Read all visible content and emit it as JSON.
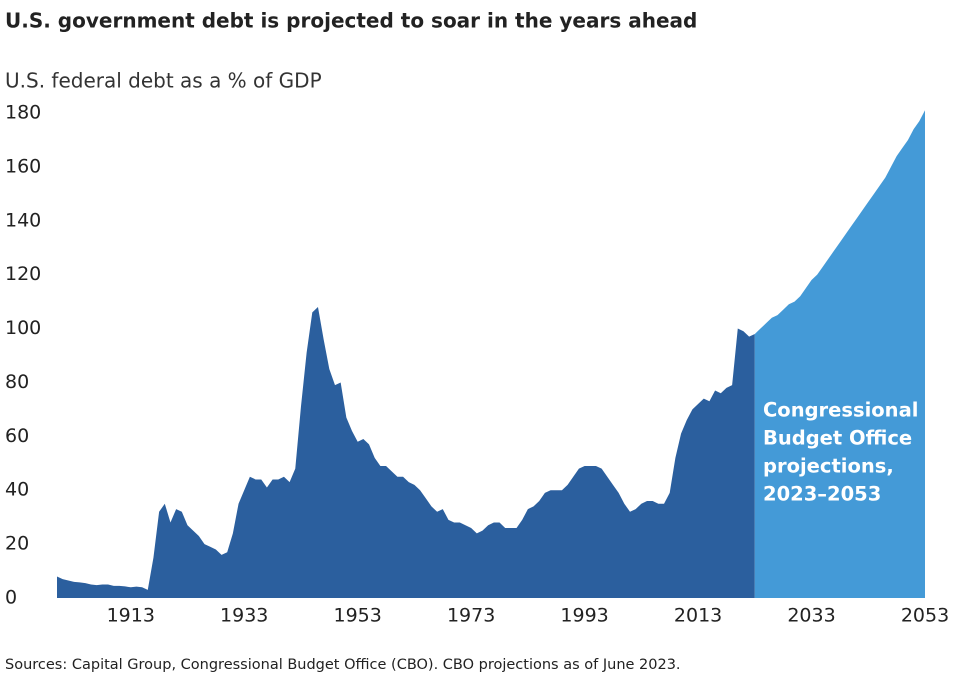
{
  "chart_data": {
    "type": "area",
    "title": "U.S. government debt is projected to soar in the years ahead",
    "subtitle": "U.S. federal debt as a % of GDP",
    "source": "Sources: Capital Group, Congressional Budget Office (CBO). CBO projections as of June 2023.",
    "annotation": [
      "Congressional",
      "Budget Office",
      "projections,",
      "2023–2053"
    ],
    "xlim": [
      1900,
      2053
    ],
    "xticks": [
      1913,
      1933,
      1953,
      1973,
      1993,
      2013,
      2033,
      2053
    ],
    "ylim": [
      0,
      180
    ],
    "yticks": [
      0,
      20,
      40,
      60,
      80,
      100,
      120,
      140,
      160,
      180
    ],
    "grid": false,
    "series": [
      {
        "color": "#2b5f9e",
        "x": [
          1900,
          1901,
          1902,
          1903,
          1904,
          1905,
          1906,
          1907,
          1908,
          1909,
          1910,
          1911,
          1912,
          1913,
          1914,
          1915,
          1916,
          1917,
          1918,
          1919,
          1920,
          1921,
          1922,
          1923,
          1924,
          1925,
          1926,
          1927,
          1928,
          1929,
          1930,
          1931,
          1932,
          1933,
          1934,
          1935,
          1936,
          1937,
          1938,
          1939,
          1940,
          1941,
          1942,
          1943,
          1944,
          1945,
          1946,
          1947,
          1948,
          1949,
          1950,
          1951,
          1952,
          1953,
          1954,
          1955,
          1956,
          1957,
          1958,
          1959,
          1960,
          1961,
          1962,
          1963,
          1964,
          1965,
          1966,
          1967,
          1968,
          1969,
          1970,
          1971,
          1972,
          1973,
          1974,
          1975,
          1976,
          1977,
          1978,
          1979,
          1980,
          1981,
          1982,
          1983,
          1984,
          1985,
          1986,
          1987,
          1988,
          1989,
          1990,
          1991,
          1992,
          1993,
          1994,
          1995,
          1996,
          1997,
          1998,
          1999,
          2000,
          2001,
          2002,
          2003,
          2004,
          2005,
          2006,
          2007,
          2008,
          2009,
          2010,
          2011,
          2012,
          2013,
          2014,
          2015,
          2016,
          2017,
          2018,
          2019,
          2020,
          2021,
          2022,
          2023
        ],
        "values": [
          8,
          7,
          6.5,
          6,
          5.8,
          5.5,
          5,
          4.8,
          5,
          5,
          4.5,
          4.5,
          4.3,
          4,
          4.2,
          4,
          3,
          15,
          32,
          35,
          28,
          33,
          32,
          27,
          25,
          23,
          20,
          19,
          18,
          16,
          17,
          24,
          35,
          40,
          45,
          44,
          44,
          41,
          44,
          44,
          45,
          43,
          48,
          71,
          91,
          106,
          108,
          96,
          85,
          79,
          80,
          67,
          62,
          58,
          59,
          57,
          52,
          49,
          49,
          47,
          45,
          45,
          43,
          42,
          40,
          37,
          34,
          32,
          33,
          29,
          28,
          28,
          27,
          26,
          24,
          25,
          27,
          28,
          28,
          26,
          26,
          26,
          29,
          33,
          34,
          36,
          39,
          40,
          40,
          40,
          42,
          45,
          48,
          49,
          49,
          49,
          48,
          45,
          42,
          39,
          35,
          32,
          33,
          35,
          36,
          36,
          35,
          35,
          39,
          52,
          61,
          66,
          70,
          72,
          74,
          73,
          77,
          76,
          78,
          79,
          100,
          99,
          97,
          98
        ]
      },
      {
        "color": "#449ad7",
        "x": [
          2023,
          2024,
          2025,
          2026,
          2027,
          2028,
          2029,
          2030,
          2031,
          2032,
          2033,
          2034,
          2035,
          2036,
          2037,
          2038,
          2039,
          2040,
          2041,
          2042,
          2043,
          2044,
          2045,
          2046,
          2047,
          2048,
          2049,
          2050,
          2051,
          2052,
          2053
        ],
        "values": [
          98,
          100,
          102,
          104,
          105,
          107,
          109,
          110,
          112,
          115,
          118,
          120,
          123,
          126,
          129,
          132,
          135,
          138,
          141,
          144,
          147,
          150,
          153,
          156,
          160,
          164,
          167,
          170,
          174,
          177,
          181
        ]
      }
    ]
  }
}
